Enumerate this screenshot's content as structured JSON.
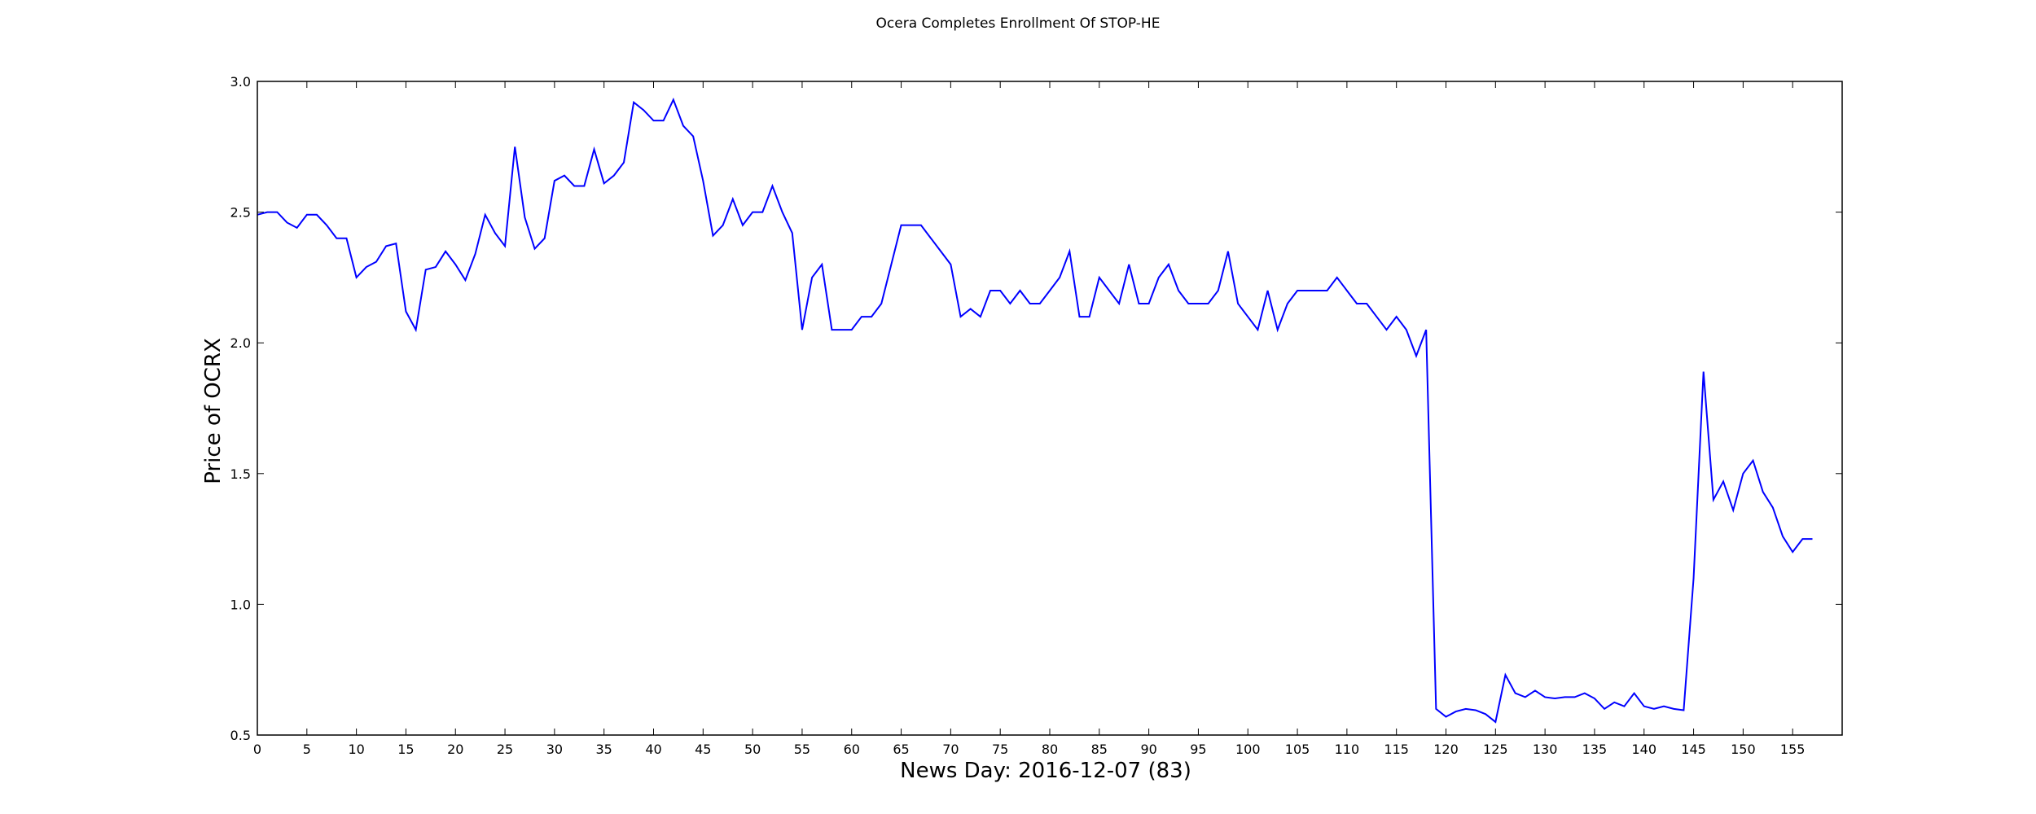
{
  "chart_data": {
    "type": "line",
    "title": "Ocera Completes Enrollment Of STOP-HE",
    "xlabel": "News Day: 2016-12-07 (83)",
    "ylabel": "Price of OCRX",
    "xlim": [
      0,
      160
    ],
    "ylim": [
      0.5,
      3.0
    ],
    "xticks": [
      0,
      5,
      10,
      15,
      20,
      25,
      30,
      35,
      40,
      45,
      50,
      55,
      60,
      65,
      70,
      75,
      80,
      85,
      90,
      95,
      100,
      105,
      110,
      115,
      120,
      125,
      130,
      135,
      140,
      145,
      150,
      155
    ],
    "yticks": [
      0.5,
      1.0,
      1.5,
      2.0,
      2.5,
      3.0
    ],
    "ytick_labels": [
      "0.5",
      "1.0",
      "1.5",
      "2.0",
      "2.5",
      "3.0"
    ],
    "grid": false,
    "line_color": "#0000ff",
    "series": [
      {
        "values": [
          2.49,
          2.5,
          2.5,
          2.46,
          2.44,
          2.49,
          2.49,
          2.45,
          2.4,
          2.4,
          2.25,
          2.29,
          2.31,
          2.37,
          2.38,
          2.12,
          2.05,
          2.28,
          2.29,
          2.35,
          2.3,
          2.24,
          2.34,
          2.49,
          2.42,
          2.37,
          2.75,
          2.48,
          2.36,
          2.4,
          2.62,
          2.64,
          2.6,
          2.6,
          2.74,
          2.61,
          2.64,
          2.69,
          2.92,
          2.89,
          2.85,
          2.85,
          2.93,
          2.83,
          2.79,
          2.62,
          2.41,
          2.45,
          2.55,
          2.45,
          2.5,
          2.5,
          2.6,
          2.5,
          2.42,
          2.05,
          2.25,
          2.3,
          2.05,
          2.05,
          2.05,
          2.1,
          2.1,
          2.15,
          2.3,
          2.45,
          2.45,
          2.45,
          2.4,
          2.35,
          2.3,
          2.1,
          2.13,
          2.1,
          2.2,
          2.2,
          2.15,
          2.2,
          2.15,
          2.15,
          2.2,
          2.25,
          2.35,
          2.1,
          2.1,
          2.25,
          2.2,
          2.15,
          2.3,
          2.15,
          2.15,
          2.25,
          2.3,
          2.2,
          2.15,
          2.15,
          2.15,
          2.2,
          2.35,
          2.15,
          2.1,
          2.05,
          2.2,
          2.05,
          2.15,
          2.2,
          2.2,
          2.2,
          2.2,
          2.25,
          2.2,
          2.15,
          2.15,
          2.1,
          2.05,
          2.1,
          2.05,
          1.95,
          2.05,
          0.6,
          0.57,
          0.59,
          0.6,
          0.595,
          0.58,
          0.55,
          0.73,
          0.66,
          0.645,
          0.67,
          0.645,
          0.64,
          0.645,
          0.645,
          0.66,
          0.64,
          0.6,
          0.625,
          0.61,
          0.66,
          0.61,
          0.6,
          0.61,
          0.6,
          0.595,
          1.1,
          1.89,
          1.4,
          1.47,
          1.36,
          1.5,
          1.55,
          1.43,
          1.37,
          1.26,
          1.2,
          1.25,
          1.25
        ]
      }
    ]
  }
}
